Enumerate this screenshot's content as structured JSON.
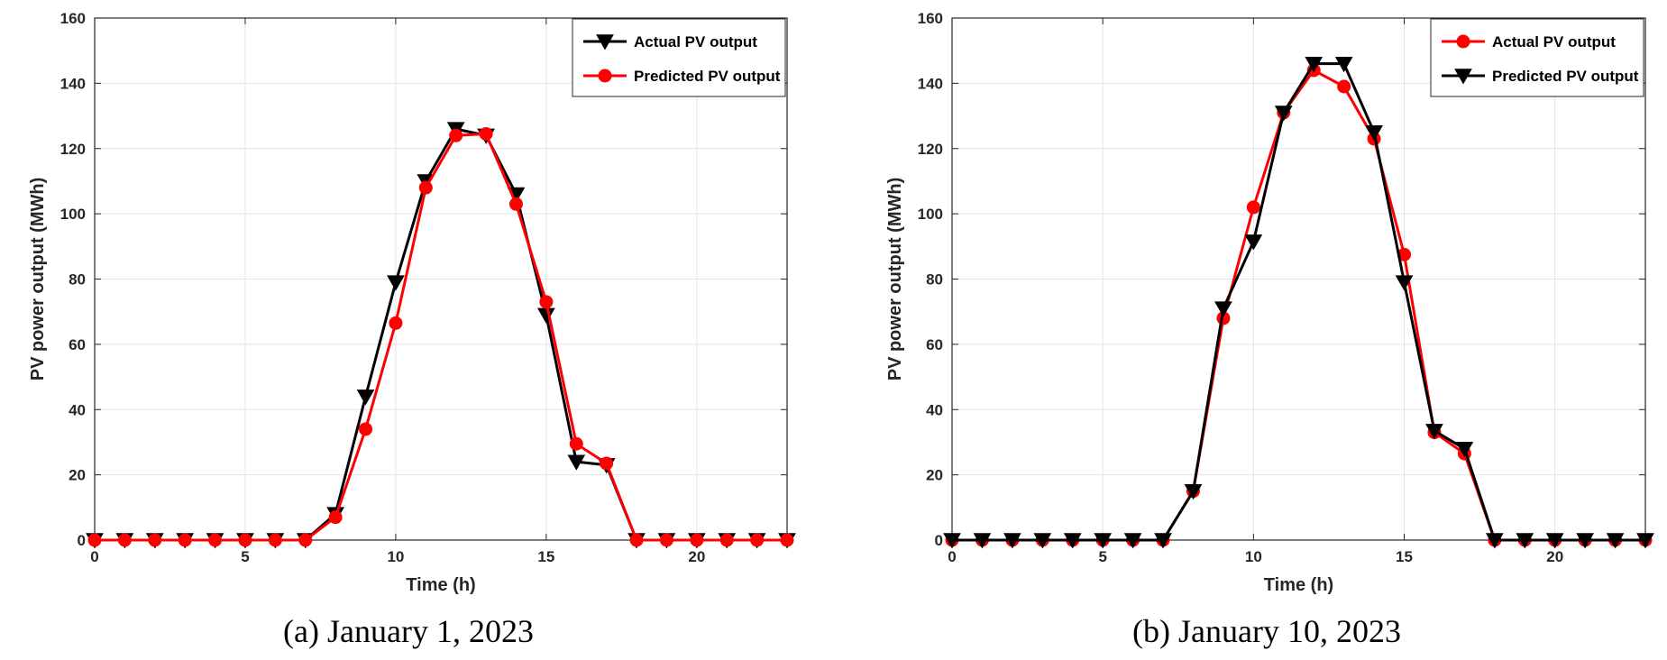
{
  "chart_data": [
    {
      "type": "line",
      "caption": "(a) January 1, 2023",
      "xlabel": "Time (h)",
      "ylabel": "PV power output (MWh)",
      "xlim": [
        0,
        23
      ],
      "ylim": [
        0,
        160
      ],
      "xticks": [
        0,
        5,
        10,
        15,
        20
      ],
      "yticks": [
        0,
        20,
        40,
        60,
        80,
        100,
        120,
        140,
        160
      ],
      "grid": true,
      "legend_position": "top-right",
      "x": [
        0,
        1,
        2,
        3,
        4,
        5,
        6,
        7,
        8,
        9,
        10,
        11,
        12,
        13,
        14,
        15,
        16,
        17,
        18,
        19,
        20,
        21,
        22,
        23
      ],
      "series": [
        {
          "name": "Actual PV output",
          "color": "#000000",
          "marker": "triangle-down",
          "values": [
            0,
            0,
            0,
            0,
            0,
            0,
            0,
            0,
            8,
            44,
            79,
            110,
            126,
            124,
            106,
            69,
            24,
            23,
            0,
            0,
            0,
            0,
            0,
            0
          ]
        },
        {
          "name": "Predicted PV output",
          "color": "#ff0000",
          "marker": "circle",
          "values": [
            0,
            0,
            0,
            0,
            0,
            0,
            0,
            0,
            7,
            34,
            66.5,
            108,
            124,
            124.5,
            103,
            73,
            29.5,
            23.5,
            0,
            0,
            0,
            0,
            0,
            0
          ]
        }
      ]
    },
    {
      "type": "line",
      "caption": "(b) January 10, 2023",
      "xlabel": "Time (h)",
      "ylabel": "PV power output (MWh)",
      "xlim": [
        0,
        23
      ],
      "ylim": [
        0,
        160
      ],
      "xticks": [
        0,
        5,
        10,
        15,
        20
      ],
      "yticks": [
        0,
        20,
        40,
        60,
        80,
        100,
        120,
        140,
        160
      ],
      "grid": true,
      "legend_position": "top-right",
      "x": [
        0,
        1,
        2,
        3,
        4,
        5,
        6,
        7,
        8,
        9,
        10,
        11,
        12,
        13,
        14,
        15,
        16,
        17,
        18,
        19,
        20,
        21,
        22,
        23
      ],
      "series": [
        {
          "name": "Actual PV output",
          "color": "#ff0000",
          "marker": "circle",
          "values": [
            0,
            0,
            0,
            0,
            0,
            0,
            0,
            0,
            15,
            68,
            102,
            131,
            144,
            139,
            123,
            87.5,
            33,
            26.5,
            0,
            0,
            0,
            0,
            0,
            0
          ]
        },
        {
          "name": "Predicted PV output",
          "color": "#000000",
          "marker": "triangle-down",
          "values": [
            0,
            0,
            0,
            0,
            0,
            0,
            0,
            0,
            15,
            71,
            91.5,
            131,
            146,
            146,
            125,
            79,
            33.5,
            28,
            0,
            0,
            0,
            0,
            0,
            0
          ]
        }
      ]
    }
  ]
}
